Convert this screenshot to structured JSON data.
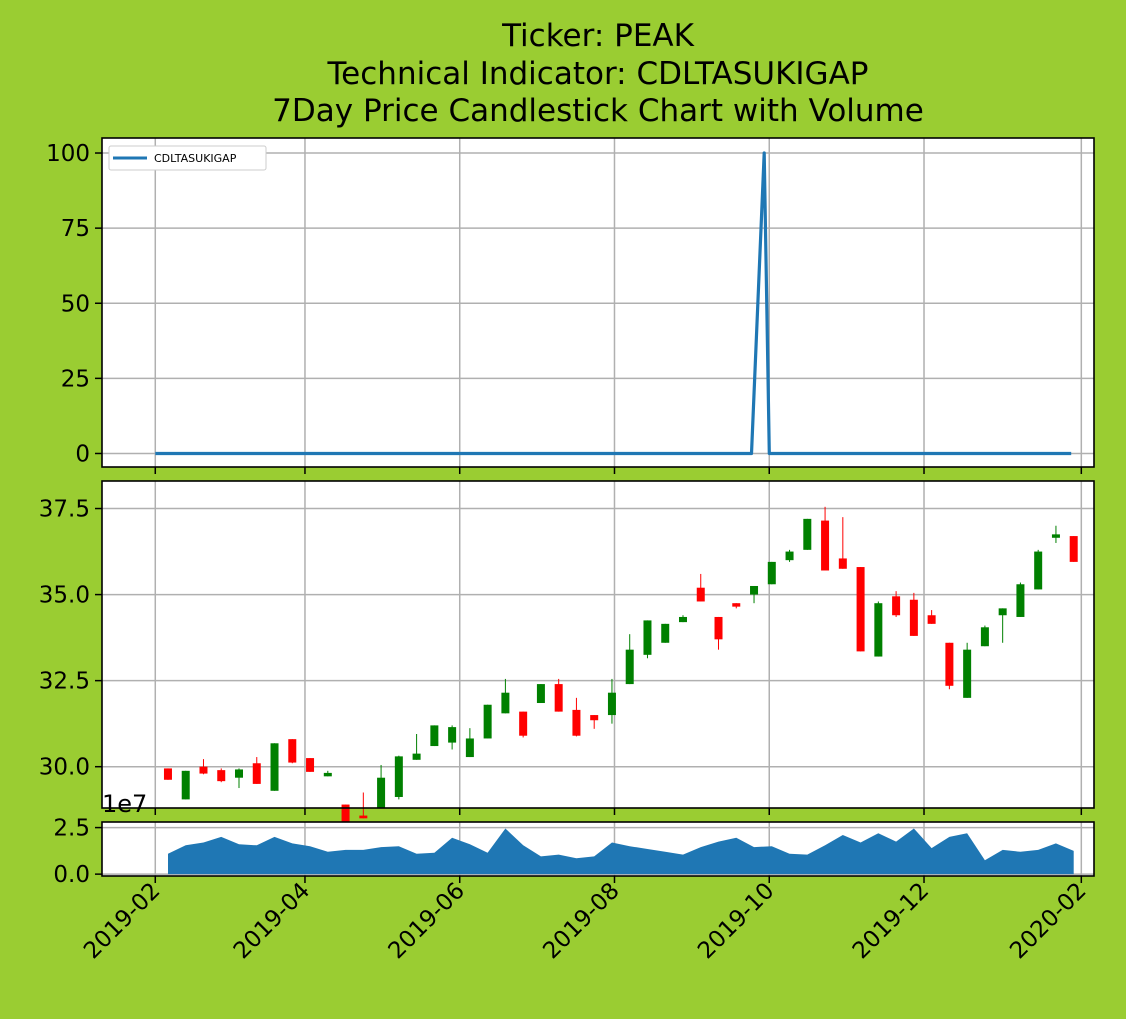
{
  "figure": {
    "background": "#9acd32",
    "title_lines": [
      "Ticker: PEAK",
      "Technical Indicator: CDLTASUKIGAP",
      "7Day Price Candlestick Chart with Volume"
    ]
  },
  "colors": {
    "indicator_line": "#1f77b4",
    "volume_fill": "#1f77b4",
    "bull": "#008000",
    "bear": "#ff0000",
    "grid": "#b0b0b0",
    "panel_bg": "#ffffff"
  },
  "chart_data": [
    {
      "type": "line",
      "name": "indicator",
      "legend": {
        "label": "CDLTASUKIGAP",
        "position": "upper-left"
      },
      "grid": true,
      "xlim": [
        "2019-01-11",
        "2020-02-06"
      ],
      "ylim": [
        -4.5,
        105
      ],
      "yticks": [
        0,
        25,
        50,
        75,
        100
      ],
      "ytick_labels": [
        "0",
        "25",
        "50",
        "75",
        "100"
      ],
      "x": [
        "2019-02-01",
        "2019-09-24",
        "2019-09-29",
        "2019-10-01",
        "2020-01-28"
      ],
      "y": [
        0,
        0,
        100,
        0,
        0
      ]
    },
    {
      "type": "candlestick",
      "name": "price",
      "grid": true,
      "ylim": [
        28.8,
        38.3
      ],
      "yticks": [
        30.0,
        32.5,
        35.0,
        37.5
      ],
      "ytick_labels": [
        "30.0",
        "32.5",
        "35.0",
        "37.5"
      ],
      "candles": [
        {
          "date": "2019-02-06",
          "open": 29.95,
          "high": 29.95,
          "low": 29.62,
          "close": 29.62
        },
        {
          "date": "2019-02-13",
          "open": 29.05,
          "high": 29.88,
          "low": 29.05,
          "close": 29.88
        },
        {
          "date": "2019-02-20",
          "open": 30.0,
          "high": 30.22,
          "low": 29.78,
          "close": 29.8
        },
        {
          "date": "2019-02-27",
          "open": 29.9,
          "high": 29.95,
          "low": 29.55,
          "close": 29.58
        },
        {
          "date": "2019-03-06",
          "open": 29.68,
          "high": 29.95,
          "low": 29.38,
          "close": 29.92
        },
        {
          "date": "2019-03-13",
          "open": 30.1,
          "high": 30.28,
          "low": 29.5,
          "close": 29.5
        },
        {
          "date": "2019-03-20",
          "open": 29.3,
          "high": 30.68,
          "low": 29.3,
          "close": 30.68
        },
        {
          "date": "2019-03-27",
          "open": 30.8,
          "high": 30.8,
          "low": 30.1,
          "close": 30.12
        },
        {
          "date": "2019-04-03",
          "open": 30.25,
          "high": 30.25,
          "low": 29.85,
          "close": 29.85
        },
        {
          "date": "2019-04-10",
          "open": 29.72,
          "high": 29.88,
          "low": 29.72,
          "close": 29.82
        },
        {
          "date": "2019-04-17",
          "open": 28.9,
          "high": 28.9,
          "low": 28.22,
          "close": 28.28
        },
        {
          "date": "2019-04-24",
          "open": 28.58,
          "high": 29.25,
          "low": 28.5,
          "close": 28.5
        },
        {
          "date": "2019-05-01",
          "open": 28.8,
          "high": 30.05,
          "low": 28.8,
          "close": 29.68
        },
        {
          "date": "2019-05-08",
          "open": 29.12,
          "high": 30.32,
          "low": 29.05,
          "close": 30.3
        },
        {
          "date": "2019-05-15",
          "open": 30.2,
          "high": 30.95,
          "low": 30.2,
          "close": 30.38
        },
        {
          "date": "2019-05-22",
          "open": 30.6,
          "high": 31.2,
          "low": 30.6,
          "close": 31.2
        },
        {
          "date": "2019-05-29",
          "open": 30.7,
          "high": 31.2,
          "low": 30.5,
          "close": 31.15
        },
        {
          "date": "2019-06-05",
          "open": 30.28,
          "high": 31.12,
          "low": 30.28,
          "close": 30.82
        },
        {
          "date": "2019-06-12",
          "open": 30.82,
          "high": 31.8,
          "low": 30.82,
          "close": 31.8
        },
        {
          "date": "2019-06-19",
          "open": 31.55,
          "high": 32.55,
          "low": 31.55,
          "close": 32.15
        },
        {
          "date": "2019-06-26",
          "open": 31.6,
          "high": 31.6,
          "low": 30.85,
          "close": 30.9
        },
        {
          "date": "2019-07-03",
          "open": 31.85,
          "high": 32.4,
          "low": 31.85,
          "close": 32.4
        },
        {
          "date": "2019-07-10",
          "open": 32.4,
          "high": 32.55,
          "low": 31.6,
          "close": 31.6
        },
        {
          "date": "2019-07-17",
          "open": 31.65,
          "high": 32.0,
          "low": 30.88,
          "close": 30.9
        },
        {
          "date": "2019-07-24",
          "open": 31.5,
          "high": 31.5,
          "low": 31.1,
          "close": 31.35
        },
        {
          "date": "2019-07-31",
          "open": 31.5,
          "high": 32.55,
          "low": 31.25,
          "close": 32.15
        },
        {
          "date": "2019-08-07",
          "open": 32.4,
          "high": 33.85,
          "low": 32.4,
          "close": 33.4
        },
        {
          "date": "2019-08-14",
          "open": 33.25,
          "high": 34.25,
          "low": 33.15,
          "close": 34.25
        },
        {
          "date": "2019-08-21",
          "open": 33.6,
          "high": 34.15,
          "low": 33.6,
          "close": 34.15
        },
        {
          "date": "2019-08-28",
          "open": 34.2,
          "high": 34.4,
          "low": 34.2,
          "close": 34.35
        },
        {
          "date": "2019-09-04",
          "open": 35.2,
          "high": 35.6,
          "low": 34.8,
          "close": 34.8
        },
        {
          "date": "2019-09-11",
          "open": 34.35,
          "high": 34.35,
          "low": 33.4,
          "close": 33.7
        },
        {
          "date": "2019-09-18",
          "open": 34.75,
          "high": 34.75,
          "low": 34.6,
          "close": 34.65
        },
        {
          "date": "2019-09-25",
          "open": 35.0,
          "high": 35.25,
          "low": 34.75,
          "close": 35.25
        },
        {
          "date": "2019-10-02",
          "open": 35.3,
          "high": 35.95,
          "low": 35.3,
          "close": 35.95
        },
        {
          "date": "2019-10-09",
          "open": 36.0,
          "high": 36.3,
          "low": 35.95,
          "close": 36.25
        },
        {
          "date": "2019-10-16",
          "open": 36.3,
          "high": 37.2,
          "low": 36.3,
          "close": 37.2
        },
        {
          "date": "2019-10-23",
          "open": 37.15,
          "high": 37.55,
          "low": 35.7,
          "close": 35.7
        },
        {
          "date": "2019-10-30",
          "open": 36.05,
          "high": 37.25,
          "low": 35.75,
          "close": 35.75
        },
        {
          "date": "2019-11-06",
          "open": 35.8,
          "high": 35.8,
          "low": 33.35,
          "close": 33.35
        },
        {
          "date": "2019-11-13",
          "open": 33.2,
          "high": 34.8,
          "low": 33.2,
          "close": 34.75
        },
        {
          "date": "2019-11-20",
          "open": 34.95,
          "high": 35.1,
          "low": 34.35,
          "close": 34.4
        },
        {
          "date": "2019-11-27",
          "open": 34.85,
          "high": 35.05,
          "low": 33.8,
          "close": 33.8
        },
        {
          "date": "2019-12-04",
          "open": 34.4,
          "high": 34.55,
          "low": 34.15,
          "close": 34.15
        },
        {
          "date": "2019-12-11",
          "open": 33.6,
          "high": 33.6,
          "low": 32.25,
          "close": 32.35
        },
        {
          "date": "2019-12-18",
          "open": 32.0,
          "high": 33.6,
          "low": 32.0,
          "close": 33.4
        },
        {
          "date": "2019-12-25",
          "open": 33.5,
          "high": 34.1,
          "low": 33.5,
          "close": 34.05
        },
        {
          "date": "2020-01-01",
          "open": 34.4,
          "high": 34.6,
          "low": 33.6,
          "close": 34.6
        },
        {
          "date": "2020-01-08",
          "open": 34.35,
          "high": 35.35,
          "low": 34.35,
          "close": 35.3
        },
        {
          "date": "2020-01-15",
          "open": 35.15,
          "high": 36.3,
          "low": 35.15,
          "close": 36.25
        },
        {
          "date": "2020-01-22",
          "open": 36.65,
          "high": 37.0,
          "low": 36.5,
          "close": 36.75
        },
        {
          "date": "2020-01-29",
          "open": 36.7,
          "high": 36.7,
          "low": 35.95,
          "close": 35.95
        }
      ]
    },
    {
      "type": "area",
      "name": "volume",
      "grid": true,
      "ylim": [
        -0.1,
        2.8
      ],
      "yticks": [
        0.0,
        2.5
      ],
      "ytick_labels": [
        "0.0",
        "2.5"
      ],
      "y_offset_label": "1e7",
      "x": [
        "2019-02-06",
        "2019-02-13",
        "2019-02-20",
        "2019-02-27",
        "2019-03-06",
        "2019-03-13",
        "2019-03-20",
        "2019-03-27",
        "2019-04-03",
        "2019-04-10",
        "2019-04-17",
        "2019-04-24",
        "2019-05-01",
        "2019-05-08",
        "2019-05-15",
        "2019-05-22",
        "2019-05-29",
        "2019-06-05",
        "2019-06-12",
        "2019-06-19",
        "2019-06-26",
        "2019-07-03",
        "2019-07-10",
        "2019-07-17",
        "2019-07-24",
        "2019-07-31",
        "2019-08-07",
        "2019-08-14",
        "2019-08-21",
        "2019-08-28",
        "2019-09-04",
        "2019-09-11",
        "2019-09-18",
        "2019-09-25",
        "2019-10-02",
        "2019-10-09",
        "2019-10-16",
        "2019-10-23",
        "2019-10-30",
        "2019-11-06",
        "2019-11-13",
        "2019-11-20",
        "2019-11-27",
        "2019-12-04",
        "2019-12-11",
        "2019-12-18",
        "2019-12-25",
        "2020-01-01",
        "2020-01-08",
        "2020-01-15",
        "2020-01-22",
        "2020-01-29"
      ],
      "y": [
        1.1,
        1.55,
        1.7,
        2.0,
        1.6,
        1.55,
        2.0,
        1.65,
        1.5,
        1.2,
        1.3,
        1.3,
        1.45,
        1.5,
        1.1,
        1.15,
        1.95,
        1.6,
        1.15,
        2.45,
        1.55,
        0.95,
        1.05,
        0.85,
        0.95,
        1.7,
        1.5,
        1.35,
        1.2,
        1.05,
        1.45,
        1.75,
        1.95,
        1.45,
        1.5,
        1.1,
        1.05,
        1.55,
        2.1,
        1.7,
        2.2,
        1.75,
        2.45,
        1.4,
        2.0,
        2.2,
        0.75,
        1.3,
        1.2,
        1.3,
        1.65,
        1.25
      ]
    }
  ],
  "x_axis": {
    "ticks": [
      "2019-02-01",
      "2019-04-01",
      "2019-06-01",
      "2019-08-01",
      "2019-10-01",
      "2019-12-01",
      "2020-02-01"
    ],
    "tick_labels": [
      "2019-02",
      "2019-04",
      "2019-06",
      "2019-08",
      "2019-10",
      "2019-12",
      "2020-02"
    ],
    "label_rotation_deg": 45
  }
}
